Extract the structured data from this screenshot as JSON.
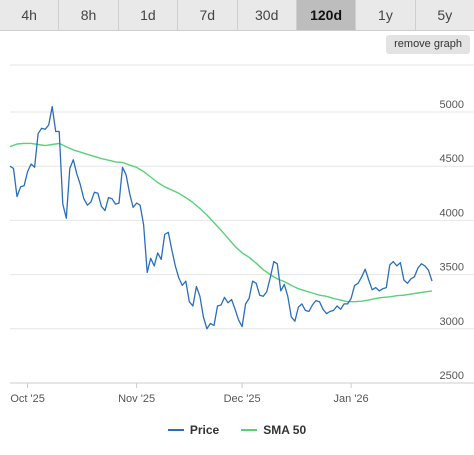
{
  "tabs": [
    {
      "label": "4h",
      "active": false
    },
    {
      "label": "8h",
      "active": false
    },
    {
      "label": "1d",
      "active": false
    },
    {
      "label": "7d",
      "active": false
    },
    {
      "label": "30d",
      "active": false
    },
    {
      "label": "120d",
      "active": true
    },
    {
      "label": "1y",
      "active": false
    },
    {
      "label": "5y",
      "active": false
    }
  ],
  "remove_graph_label": "remove graph",
  "colors": {
    "price": "#2a6ebb",
    "sma": "#59d17a",
    "grid": "#e6e6e6"
  },
  "chart_data": {
    "type": "line",
    "x_ticks": [
      "Oct '25",
      "Nov '25",
      "Dec '25",
      "Jan '26"
    ],
    "x_tick_positions": [
      5,
      36,
      66,
      97
    ],
    "xlim": [
      0,
      120
    ],
    "ylim": [
      2500,
      5000
    ],
    "y_ticks": [
      2500,
      3000,
      3500,
      4000,
      4500,
      5000
    ],
    "grid": true,
    "legend_position": "bottom",
    "series": [
      {
        "name": "Price",
        "color": "#2a6ebb",
        "x": [
          0,
          1,
          2,
          3,
          4,
          5,
          6,
          7,
          8,
          9,
          10,
          11,
          12,
          13,
          14,
          15,
          16,
          17,
          18,
          19,
          20,
          21,
          22,
          23,
          24,
          25,
          26,
          27,
          28,
          29,
          30,
          31,
          32,
          33,
          34,
          35,
          36,
          37,
          38,
          39,
          40,
          41,
          42,
          43,
          44,
          45,
          46,
          47,
          48,
          49,
          50,
          51,
          52,
          53,
          54,
          55,
          56,
          57,
          58,
          59,
          60,
          61,
          62,
          63,
          64,
          65,
          66,
          67,
          68,
          69,
          70,
          71,
          72,
          73,
          74,
          75,
          76,
          77,
          78,
          79,
          80,
          81,
          82,
          83,
          84,
          85,
          86,
          87,
          88,
          89,
          90,
          91,
          92,
          93,
          94,
          95,
          96,
          97,
          98,
          99,
          100,
          101,
          102,
          103,
          104,
          105,
          106,
          107,
          108,
          109,
          110,
          111,
          112,
          113,
          114,
          115,
          116,
          117,
          118,
          119,
          120
        ],
        "values": [
          4500,
          4480,
          4220,
          4310,
          4320,
          4450,
          4520,
          4490,
          4800,
          4850,
          4840,
          4880,
          5050,
          4820,
          4820,
          4150,
          4020,
          4480,
          4560,
          4430,
          4330,
          4200,
          4140,
          4170,
          4260,
          4250,
          4130,
          4090,
          4210,
          4200,
          4150,
          4160,
          4490,
          4420,
          4250,
          4120,
          4160,
          4140,
          3960,
          3520,
          3650,
          3580,
          3700,
          3640,
          3870,
          3890,
          3730,
          3580,
          3470,
          3400,
          3440,
          3250,
          3210,
          3390,
          3300,
          3110,
          3000,
          3050,
          3030,
          3210,
          3220,
          3290,
          3240,
          3270,
          3180,
          3080,
          3020,
          3230,
          3280,
          3440,
          3420,
          3310,
          3300,
          3340,
          3470,
          3620,
          3600,
          3350,
          3410,
          3300,
          3110,
          3070,
          3200,
          3230,
          3170,
          3160,
          3220,
          3260,
          3250,
          3180,
          3140,
          3160,
          3170,
          3210,
          3180,
          3230,
          3230,
          3280,
          3400,
          3420,
          3480,
          3550,
          3450,
          3360,
          3380,
          3350,
          3370,
          3380,
          3590,
          3620,
          3580,
          3610,
          3450,
          3420,
          3460,
          3480,
          3560,
          3600,
          3580,
          3540,
          3440
        ]
      },
      {
        "name": "SMA 50",
        "color": "#59d17a",
        "x": [
          0,
          2,
          4,
          6,
          8,
          10,
          12,
          14,
          16,
          18,
          20,
          22,
          24,
          26,
          28,
          30,
          32,
          34,
          36,
          38,
          40,
          42,
          44,
          46,
          48,
          50,
          52,
          54,
          56,
          58,
          60,
          62,
          64,
          66,
          68,
          70,
          72,
          74,
          76,
          78,
          80,
          82,
          84,
          86,
          88,
          90,
          92,
          94,
          96,
          98,
          100,
          102,
          104,
          106,
          108,
          110,
          112,
          114,
          116,
          118,
          120
        ],
        "values": [
          4680,
          4705,
          4710,
          4710,
          4700,
          4690,
          4700,
          4710,
          4680,
          4650,
          4630,
          4610,
          4590,
          4570,
          4555,
          4540,
          4535,
          4510,
          4490,
          4450,
          4400,
          4350,
          4310,
          4280,
          4250,
          4210,
          4165,
          4110,
          4050,
          3980,
          3910,
          3835,
          3760,
          3700,
          3660,
          3605,
          3545,
          3500,
          3460,
          3435,
          3400,
          3370,
          3350,
          3330,
          3310,
          3300,
          3280,
          3265,
          3250,
          3250,
          3255,
          3265,
          3280,
          3290,
          3295,
          3305,
          3310,
          3320,
          3330,
          3340,
          3350
        ]
      }
    ]
  }
}
